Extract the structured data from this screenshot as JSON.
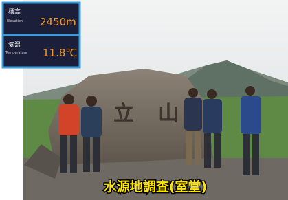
{
  "overlay": {
    "elevation": {
      "kanji": "標高",
      "english": "Elevation",
      "value": "2450m"
    },
    "temperature": {
      "kanji": "気温",
      "english": "Temperature",
      "value": "11.8℃"
    }
  },
  "rock_text": {
    "left": "立",
    "right": "山"
  },
  "caption": "水源地調査(室堂)"
}
